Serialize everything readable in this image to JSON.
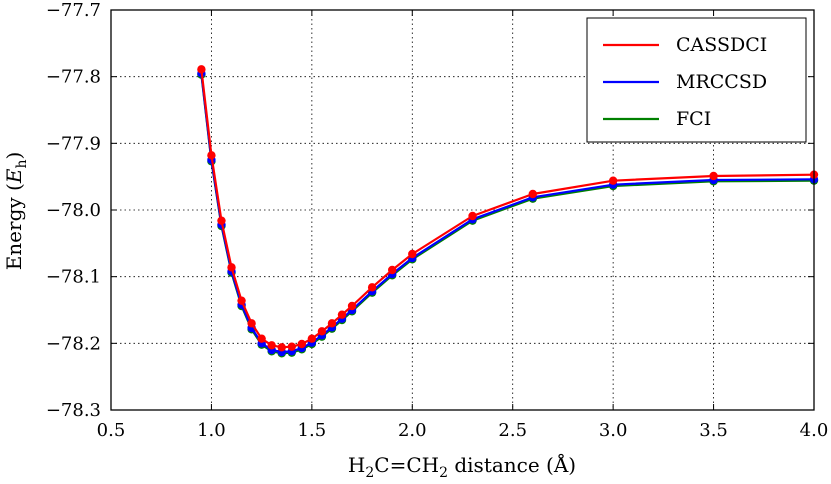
{
  "chart_data": {
    "type": "line",
    "title": "",
    "xlabel": {
      "prefix": "H",
      "sub1": "2",
      "middle": "C=CH",
      "sub2": "2",
      "suffix": " distance (Å)"
    },
    "ylabel": {
      "prefix": "Energy (",
      "var": "E",
      "sub": "h",
      "suffix": ")"
    },
    "xlim": [
      0.5,
      4.0
    ],
    "ylim": [
      -78.3,
      -77.7
    ],
    "grid": true,
    "legend_position": "top-right",
    "x_ticks": [
      0.5,
      1.0,
      1.5,
      2.0,
      2.5,
      3.0,
      3.5,
      4.0
    ],
    "x_tick_labels": [
      "0.5",
      "1.0",
      "1.5",
      "2.0",
      "2.5",
      "3.0",
      "3.5",
      "4.0"
    ],
    "y_ticks": [
      -77.7,
      -77.8,
      -77.9,
      -78.0,
      -78.1,
      -78.2,
      -78.3
    ],
    "y_tick_labels": [
      "−77.7",
      "−77.8",
      "−77.9",
      "−78.0",
      "−78.1",
      "−78.2",
      "−78.3"
    ],
    "x": [
      0.95,
      1.0,
      1.05,
      1.1,
      1.15,
      1.2,
      1.25,
      1.3,
      1.35,
      1.4,
      1.45,
      1.5,
      1.55,
      1.6,
      1.65,
      1.7,
      1.8,
      1.9,
      2.0,
      2.3,
      2.6,
      3.0,
      3.5,
      4.0
    ],
    "series": [
      {
        "name": "CASSDCI",
        "color": "#ff0000",
        "values": [
          -77.789,
          -77.918,
          -78.016,
          -78.086,
          -78.136,
          -78.17,
          -78.193,
          -78.203,
          -78.206,
          -78.205,
          -78.201,
          -78.193,
          -78.182,
          -78.17,
          -78.157,
          -78.144,
          -78.116,
          -78.09,
          -78.066,
          -78.009,
          -77.976,
          -77.956,
          -77.949,
          -77.947
        ]
      },
      {
        "name": "MRCCSD",
        "color": "#0000ff",
        "values": [
          -77.795,
          -77.925,
          -78.022,
          -78.092,
          -78.142,
          -78.177,
          -78.2,
          -78.21,
          -78.213,
          -78.212,
          -78.207,
          -78.199,
          -78.188,
          -78.176,
          -78.163,
          -78.15,
          -78.122,
          -78.096,
          -78.072,
          -78.014,
          -77.981,
          -77.962,
          -77.955,
          -77.954
        ]
      },
      {
        "name": "FCI",
        "color": "#008000",
        "values": [
          -77.797,
          -77.927,
          -78.024,
          -78.094,
          -78.144,
          -78.179,
          -78.202,
          -78.212,
          -78.215,
          -78.214,
          -78.209,
          -78.201,
          -78.19,
          -78.178,
          -78.165,
          -78.152,
          -78.124,
          -78.098,
          -78.074,
          -78.016,
          -77.983,
          -77.964,
          -77.957,
          -77.956
        ]
      }
    ]
  }
}
